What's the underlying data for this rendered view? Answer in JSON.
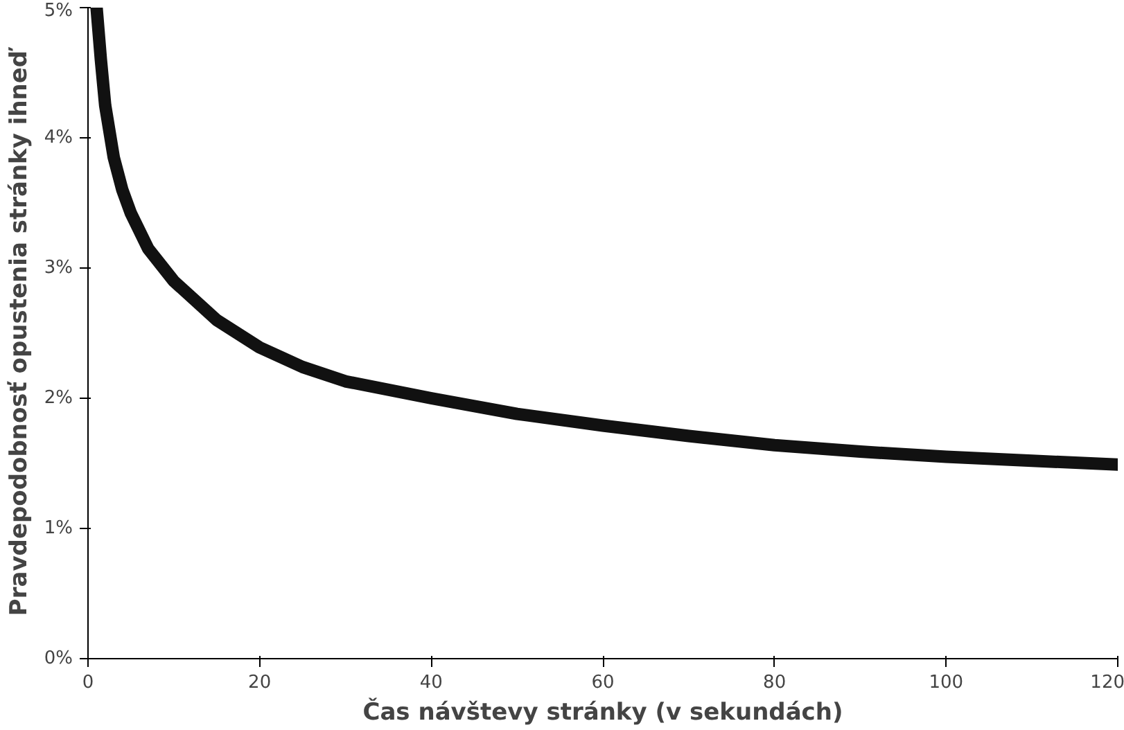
{
  "chart_data": {
    "type": "line",
    "xlabel": "Čas návštevy stránky (v sekundách)",
    "ylabel": "Pravdepodobnosť opustenia stránky ihneď",
    "x": [
      1,
      1.5,
      2,
      3,
      4,
      5,
      7,
      10,
      15,
      20,
      25,
      30,
      40,
      50,
      60,
      70,
      80,
      90,
      100,
      110,
      120
    ],
    "series": [
      {
        "color": "#111111",
        "values": [
          5.0,
          4.6,
          4.25,
          3.85,
          3.6,
          3.42,
          3.15,
          2.9,
          2.6,
          2.39,
          2.24,
          2.13,
          2.0,
          1.88,
          1.79,
          1.71,
          1.64,
          1.59,
          1.55,
          1.52,
          1.49
        ]
      }
    ],
    "xlim": [
      0,
      120
    ],
    "xticks": [
      0,
      20,
      40,
      60,
      80,
      100,
      120
    ],
    "ylim": [
      0,
      5
    ],
    "yticks": [
      {
        "value": 0,
        "label": "0%"
      },
      {
        "value": 1,
        "label": "1%"
      },
      {
        "value": 2,
        "label": "2%"
      },
      {
        "value": 3,
        "label": "3%"
      },
      {
        "value": 4,
        "label": "4%"
      },
      {
        "value": 5,
        "label": "5%"
      }
    ],
    "grid": false,
    "marker": "none",
    "line_style": "solid"
  }
}
